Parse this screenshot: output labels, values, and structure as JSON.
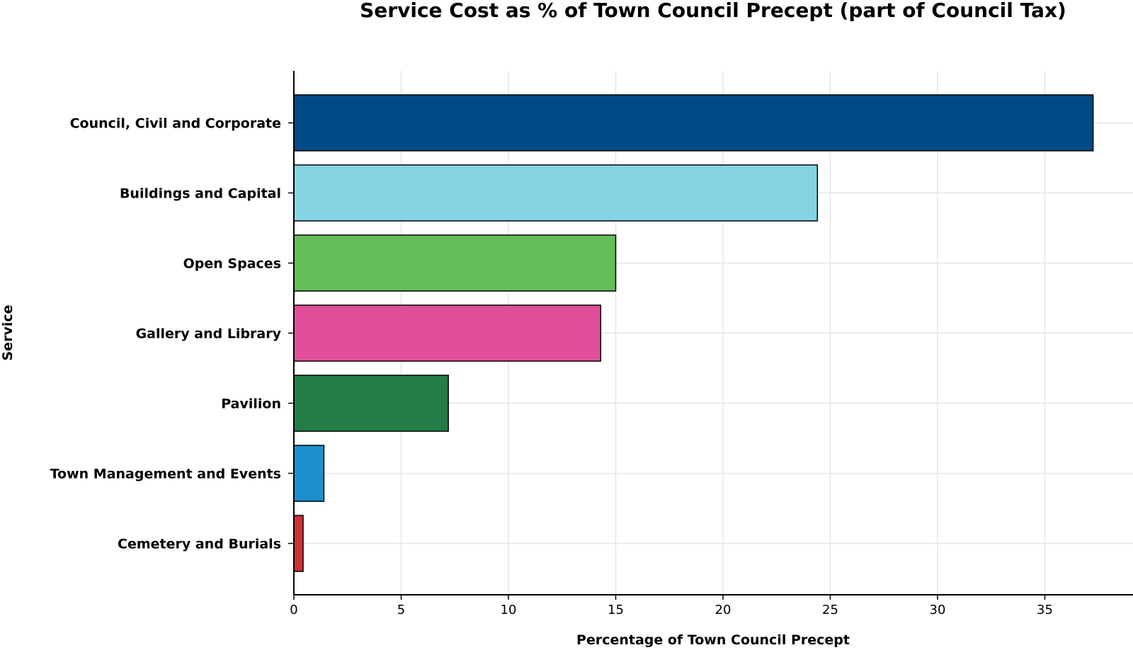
{
  "chart_data": {
    "type": "bar",
    "orientation": "horizontal",
    "title": "Service Cost as % of Town Council Precept (part of Council Tax)",
    "xlabel": "Percentage of Town Council Precept",
    "ylabel": "Service",
    "categories": [
      "Council, Civil and Corporate",
      "Buildings and Capital",
      "Open Spaces",
      "Gallery and Library",
      "Pavilion",
      "Town Management and Events",
      "Cemetery and Burials"
    ],
    "values": [
      37.25,
      24.4,
      15.0,
      14.3,
      7.2,
      1.4,
      0.43
    ],
    "colors": [
      "#004a87",
      "#87d3e3",
      "#63be59",
      "#e14f9a",
      "#237d46",
      "#1c8fcf",
      "#cf3135"
    ],
    "xticks": [
      0,
      5,
      10,
      15,
      20,
      25,
      30,
      35
    ],
    "xlim": [
      0,
      39.1
    ],
    "grid": true
  }
}
